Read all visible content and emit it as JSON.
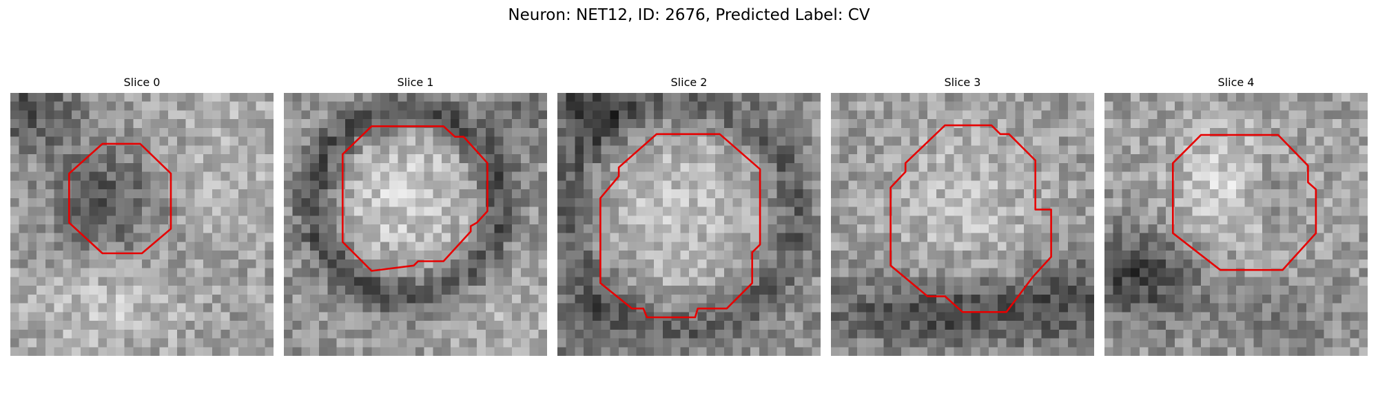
{
  "figure": {
    "title": "Neuron: NET12, ID: 2676, Predicted Label: CV",
    "outline_color": "#e60000",
    "image_colormap": "grayscale"
  },
  "panels": [
    {
      "title": "Slice 0"
    },
    {
      "title": "Slice 1"
    },
    {
      "title": "Slice 2"
    },
    {
      "title": "Slice 3"
    },
    {
      "title": "Slice 4"
    }
  ]
}
